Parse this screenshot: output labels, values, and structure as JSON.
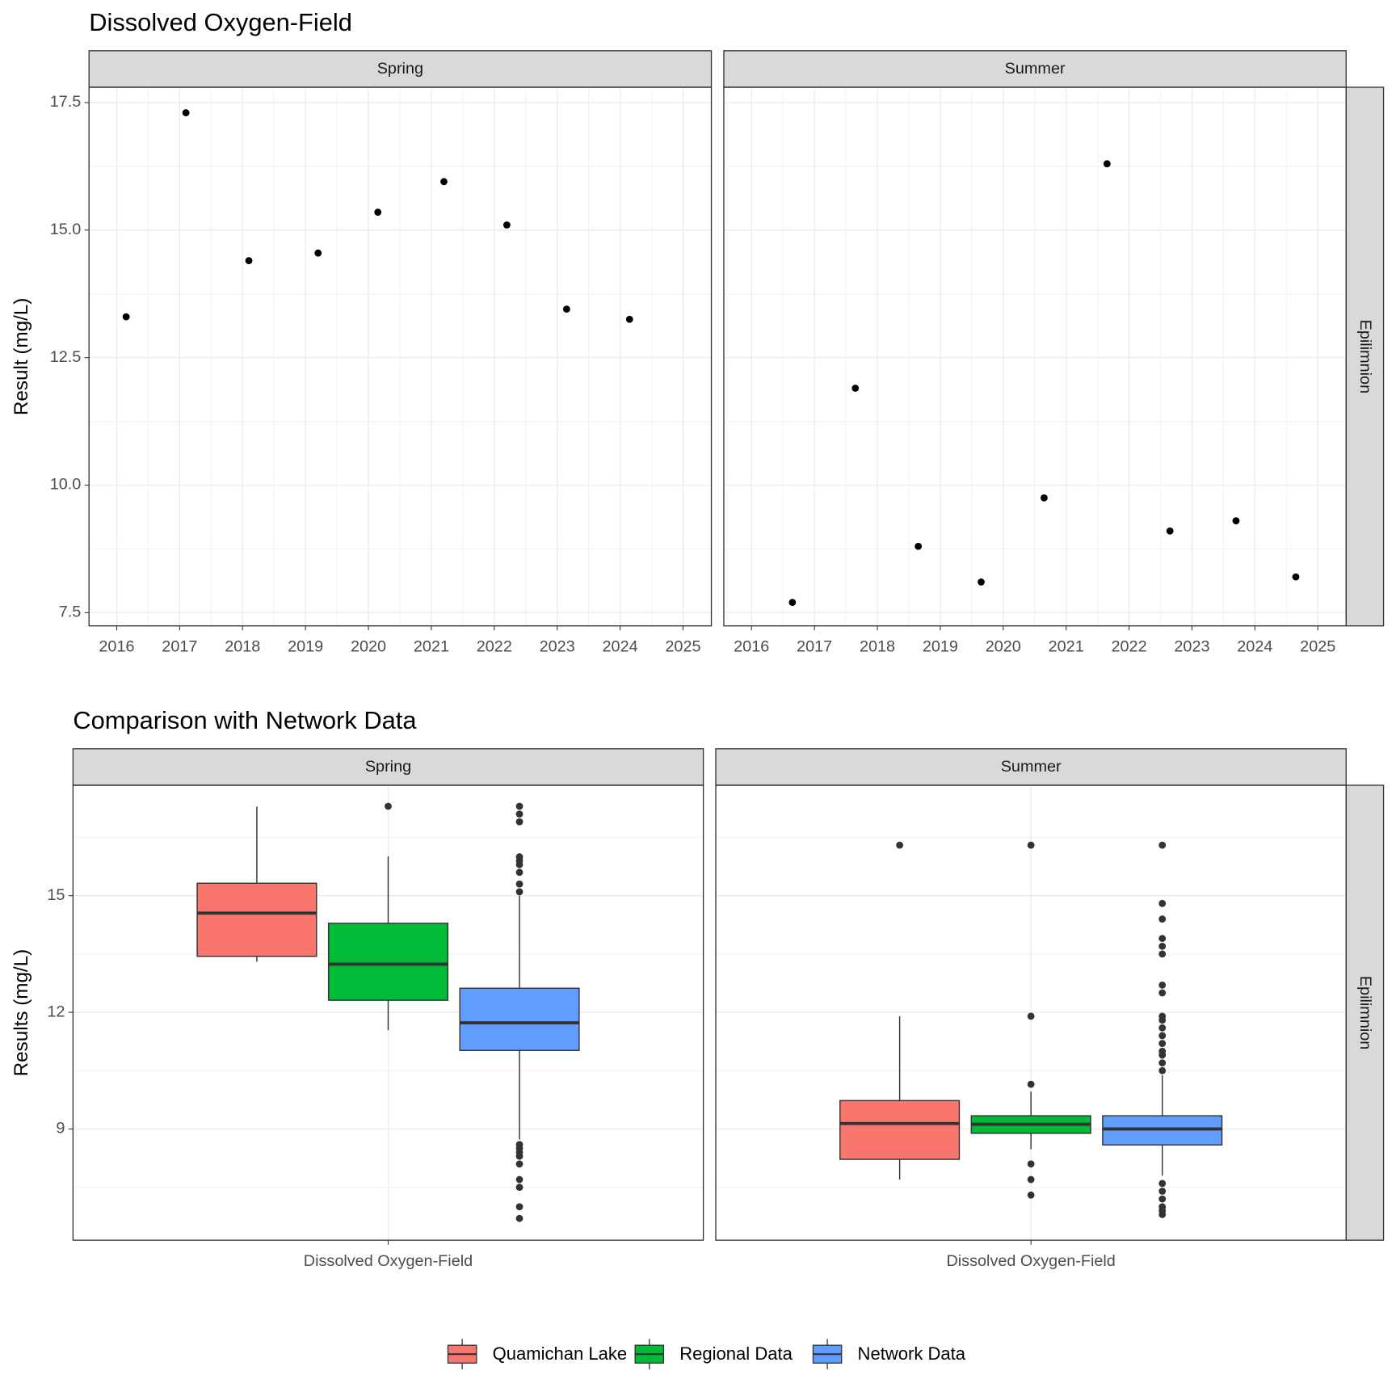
{
  "chart_data": [
    {
      "type": "scatter",
      "title": "Dissolved Oxygen-Field",
      "y_label": "Result (mg/L)",
      "row_facet": "Epilimnion",
      "color": "#000000",
      "grid": true,
      "xlim": [
        2015.56,
        2025.45
      ],
      "xticks": [
        2016,
        2017,
        2018,
        2019,
        2020,
        2021,
        2022,
        2023,
        2024,
        2025
      ],
      "ylim": [
        7.24,
        17.8
      ],
      "yticks": [
        {
          "value": 7.5,
          "label": "7.5"
        },
        {
          "value": 10,
          "label": "10.0"
        },
        {
          "value": 12.5,
          "label": "12.5"
        },
        {
          "value": 15,
          "label": "15.0"
        },
        {
          "value": 17.5,
          "label": "17.5"
        }
      ],
      "panels": [
        {
          "name": "Spring",
          "x": [
            2016.15,
            2017.1,
            2018.1,
            2019.2,
            2020.15,
            2021.2,
            2022.2,
            2023.15,
            2024.15
          ],
          "values": [
            13.3,
            17.3,
            14.4,
            14.55,
            15.35,
            15.95,
            15.1,
            13.45,
            13.25
          ]
        },
        {
          "name": "Summer",
          "x": [
            2016.65,
            2017.65,
            2018.65,
            2019.65,
            2020.65,
            2021.65,
            2022.65,
            2023.7,
            2024.65
          ],
          "values": [
            7.7,
            11.9,
            8.8,
            8.1,
            9.75,
            16.3,
            9.1,
            9.3,
            8.2
          ]
        }
      ]
    },
    {
      "type": "box",
      "title": "Comparison with Network Data",
      "y_label": "Results (mg/L)",
      "row_facet": "Epilimnion",
      "grid": true,
      "legend": "bottom",
      "categories": [
        "Dissolved Oxygen-Field"
      ],
      "facets": [
        "Spring",
        "Summer"
      ],
      "ylim": [
        6.14,
        17.84
      ],
      "yticks": [
        9,
        12,
        15
      ],
      "series": [
        {
          "name": "Quamichan Lake",
          "color": "#f8766d",
          "boxes": [
            {
              "low": 13.3,
              "q1": 13.44,
              "median": 14.55,
              "q3": 15.32,
              "high": 17.29,
              "outliers": []
            },
            {
              "low": 7.7,
              "q1": 8.22,
              "median": 9.14,
              "q3": 9.73,
              "high": 11.9,
              "outliers": [
                16.3
              ]
            }
          ]
        },
        {
          "name": "Regional Data",
          "color": "#00ba38",
          "boxes": [
            {
              "low": 11.54,
              "q1": 12.31,
              "median": 13.24,
              "q3": 14.29,
              "high": 16.01,
              "outliers": [
                17.3
              ]
            },
            {
              "low": 8.48,
              "q1": 8.89,
              "median": 9.12,
              "q3": 9.34,
              "high": 9.96,
              "outliers": [
                16.3,
                11.9,
                10.15,
                8.1,
                7.7,
                7.3
              ]
            }
          ]
        },
        {
          "name": "Network Data",
          "color": "#619cff",
          "boxes": [
            {
              "low": 8.73,
              "q1": 11.02,
              "median": 11.73,
              "q3": 12.62,
              "high": 15.0,
              "outliers": [
                15.1,
                15.3,
                15.6,
                15.8,
                15.9,
                16.0,
                16.9,
                17.1,
                17.3,
                8.6,
                8.5,
                8.4,
                8.3,
                8.1,
                7.7,
                7.5,
                7.0,
                6.7
              ]
            },
            {
              "low": 7.8,
              "q1": 8.59,
              "median": 9.0,
              "q3": 9.34,
              "high": 10.38,
              "outliers": [
                10.5,
                10.7,
                10.9,
                11.0,
                11.2,
                11.4,
                11.6,
                11.8,
                11.9,
                12.5,
                12.7,
                13.5,
                13.7,
                13.9,
                14.4,
                14.8,
                16.3,
                7.6,
                7.4,
                7.2,
                7.0,
                6.9,
                6.8
              ]
            }
          ]
        }
      ]
    }
  ]
}
